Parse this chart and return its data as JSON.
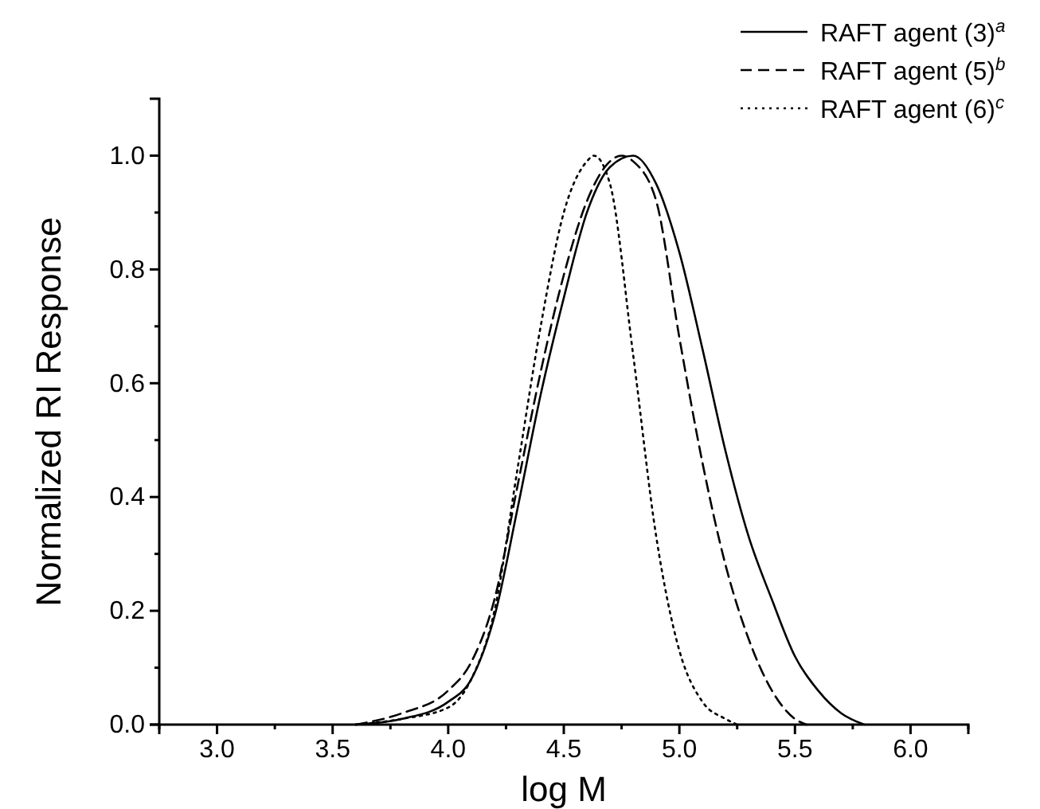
{
  "chart_data": {
    "type": "line",
    "xlabel": "log M",
    "ylabel": "Normalized RI Response",
    "xlim": [
      2.75,
      6.25
    ],
    "ylim": [
      0,
      1.1
    ],
    "xticks": [
      {
        "value": 3,
        "label": "3.0"
      },
      {
        "value": 3.5,
        "label": "3.5"
      },
      {
        "value": 4,
        "label": "4.0"
      },
      {
        "value": 4.5,
        "label": "4.5"
      },
      {
        "value": 5,
        "label": "5.0"
      },
      {
        "value": 5.5,
        "label": "5.5"
      },
      {
        "value": 6,
        "label": "6.0"
      }
    ],
    "yticks": [
      {
        "value": 0,
        "label": "0.0"
      },
      {
        "value": 0.2,
        "label": "0.2"
      },
      {
        "value": 0.4,
        "label": "0.4"
      },
      {
        "value": 0.6,
        "label": "0.6"
      },
      {
        "value": 0.8,
        "label": "0.8"
      },
      {
        "value": 1,
        "label": "1.0"
      }
    ],
    "legend": "top right",
    "grid": false,
    "marker": "none",
    "series": [
      {
        "name": "RAFT agent (3)$^{a}$",
        "color": "#000000",
        "line_style": "solid",
        "x": [
          3.6,
          3.8,
          4.0,
          4.1,
          4.2,
          4.3,
          4.4,
          4.5,
          4.6,
          4.7,
          4.8,
          4.9,
          5.0,
          5.1,
          5.2,
          5.3,
          5.4,
          5.5,
          5.6,
          5.7,
          5.8
        ],
        "values": [
          0,
          0.01,
          0.04,
          0.08,
          0.19,
          0.38,
          0.58,
          0.75,
          0.9,
          0.98,
          1.0,
          0.95,
          0.83,
          0.66,
          0.48,
          0.33,
          0.22,
          0.12,
          0.06,
          0.02,
          0
        ]
      },
      {
        "name": "RAFT agent (5)$^{b}$",
        "color": "#000000",
        "line_style": "dashed",
        "x": [
          3.6,
          3.8,
          4.0,
          4.1,
          4.2,
          4.3,
          4.4,
          4.5,
          4.6,
          4.7,
          4.75,
          4.8,
          4.9,
          5.0,
          5.1,
          5.2,
          5.3,
          5.4,
          5.5,
          5.55
        ],
        "values": [
          0,
          0.02,
          0.06,
          0.11,
          0.22,
          0.42,
          0.62,
          0.79,
          0.92,
          0.99,
          1.0,
          0.99,
          0.92,
          0.68,
          0.46,
          0.28,
          0.15,
          0.06,
          0.01,
          0
        ]
      },
      {
        "name": "RAFT agent (6)$^{c}$",
        "color": "#000000",
        "line_style": "dotted",
        "x": [
          3.6,
          3.8,
          4.0,
          4.1,
          4.2,
          4.3,
          4.4,
          4.5,
          4.6,
          4.63,
          4.7,
          4.8,
          4.9,
          5.0,
          5.1,
          5.2,
          5.25
        ],
        "values": [
          0,
          0.01,
          0.03,
          0.08,
          0.2,
          0.45,
          0.7,
          0.9,
          0.99,
          1.0,
          0.95,
          0.65,
          0.33,
          0.13,
          0.04,
          0.01,
          0
        ]
      }
    ]
  }
}
